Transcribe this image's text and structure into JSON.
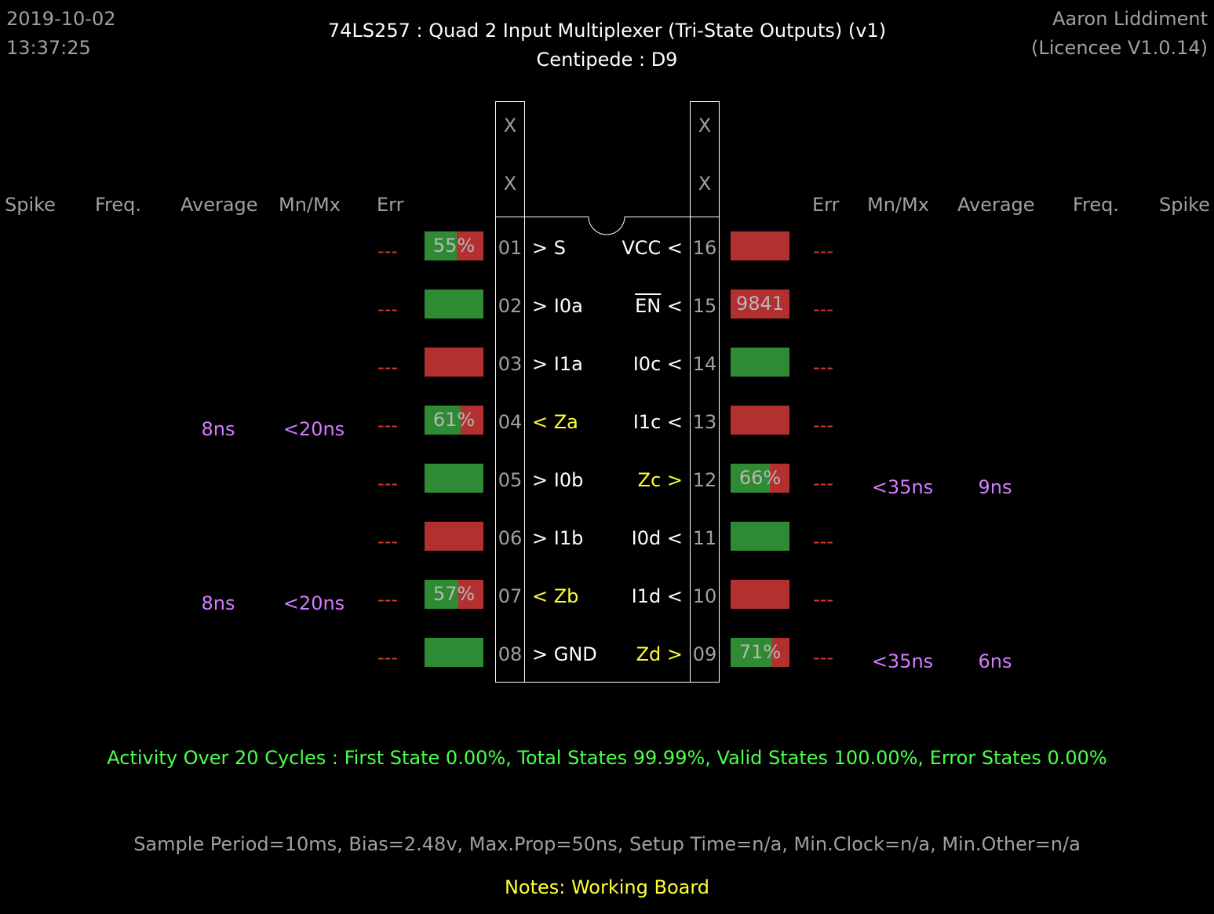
{
  "header": {
    "date": "2019-10-02",
    "time": "13:37:25",
    "title": "74LS257  :  Quad 2 Input Multiplexer (Tri-State Outputs) (v1)",
    "subtitle": "Centipede : D9",
    "author": "Aaron Liddiment",
    "licence": "(Licencee V1.0.14)"
  },
  "columns": {
    "left": [
      "Spike",
      "Freq.",
      "Average",
      "Mn/Mx",
      "Err"
    ],
    "right": [
      "Err",
      "Mn/Mx",
      "Average",
      "Freq.",
      "Spike"
    ]
  },
  "chip": {
    "top_left": [
      "X",
      "X"
    ],
    "top_right": [
      "X",
      "X"
    ]
  },
  "left_pins": [
    {
      "num": "01",
      "label": "> S",
      "err": "---",
      "average": "",
      "mnmx": "",
      "bar": {
        "state": "mixed",
        "green_pct": 55,
        "label": "55%"
      },
      "label_color": "#ffffff"
    },
    {
      "num": "02",
      "label": "> I0a",
      "err": "---",
      "average": "",
      "mnmx": "",
      "bar": {
        "state": "high",
        "green_pct": 100,
        "label": ""
      },
      "label_color": "#ffffff"
    },
    {
      "num": "03",
      "label": "> I1a",
      "err": "---",
      "average": "",
      "mnmx": "",
      "bar": {
        "state": "low",
        "green_pct": 0,
        "label": ""
      },
      "label_color": "#ffffff"
    },
    {
      "num": "04",
      "label": "< Za",
      "err": "---",
      "average": "8ns",
      "mnmx": "<20ns",
      "bar": {
        "state": "mixed",
        "green_pct": 61,
        "label": "61%"
      },
      "label_color": "#ffff33"
    },
    {
      "num": "05",
      "label": "> I0b",
      "err": "---",
      "average": "",
      "mnmx": "",
      "bar": {
        "state": "high",
        "green_pct": 100,
        "label": ""
      },
      "label_color": "#ffffff"
    },
    {
      "num": "06",
      "label": "> I1b",
      "err": "---",
      "average": "",
      "mnmx": "",
      "bar": {
        "state": "low",
        "green_pct": 0,
        "label": ""
      },
      "label_color": "#ffffff"
    },
    {
      "num": "07",
      "label": "< Zb",
      "err": "---",
      "average": "8ns",
      "mnmx": "<20ns",
      "bar": {
        "state": "mixed",
        "green_pct": 57,
        "label": "57%"
      },
      "label_color": "#ffff33"
    },
    {
      "num": "08",
      "label": "> GND",
      "err": "---",
      "average": "",
      "mnmx": "",
      "bar": {
        "state": "high",
        "green_pct": 100,
        "label": ""
      },
      "label_color": "#ffffff"
    }
  ],
  "right_pins": [
    {
      "num": "16",
      "label": "VCC <",
      "overline": false,
      "err": "---",
      "average": "",
      "mnmx": "",
      "bar": {
        "state": "low",
        "green_pct": 0,
        "label": ""
      },
      "label_color": "#ffffff"
    },
    {
      "num": "15",
      "label": "EN",
      "suffix": " <",
      "overline": true,
      "err": "---",
      "average": "",
      "mnmx": "",
      "bar": {
        "state": "low",
        "green_pct": 0,
        "label": "9841"
      },
      "label_color": "#ffffff"
    },
    {
      "num": "14",
      "label": "I0c <",
      "overline": false,
      "err": "---",
      "average": "",
      "mnmx": "",
      "bar": {
        "state": "high",
        "green_pct": 100,
        "label": ""
      },
      "label_color": "#ffffff"
    },
    {
      "num": "13",
      "label": "I1c <",
      "overline": false,
      "err": "---",
      "average": "",
      "mnmx": "",
      "bar": {
        "state": "low",
        "green_pct": 0,
        "label": ""
      },
      "label_color": "#ffffff"
    },
    {
      "num": "12",
      "label": "Zc >",
      "overline": false,
      "err": "---",
      "average": "9ns",
      "mnmx": "<35ns",
      "bar": {
        "state": "mixed",
        "green_pct": 66,
        "label": "66%"
      },
      "label_color": "#ffff33"
    },
    {
      "num": "11",
      "label": "I0d <",
      "overline": false,
      "err": "---",
      "average": "",
      "mnmx": "",
      "bar": {
        "state": "high",
        "green_pct": 100,
        "label": ""
      },
      "label_color": "#ffffff"
    },
    {
      "num": "10",
      "label": "I1d <",
      "overline": false,
      "err": "---",
      "average": "",
      "mnmx": "",
      "bar": {
        "state": "low",
        "green_pct": 0,
        "label": ""
      },
      "label_color": "#ffffff"
    },
    {
      "num": "09",
      "label": "Zd >",
      "overline": false,
      "err": "---",
      "average": "6ns",
      "mnmx": "<35ns",
      "bar": {
        "state": "mixed",
        "green_pct": 71,
        "label": "71%"
      },
      "label_color": "#ffff33"
    }
  ],
  "footer": {
    "activity": "Activity Over 20 Cycles  :  First State 0.00%,  Total States 99.99%,  Valid States 100.00%,  Error States 0.00%",
    "params": "Sample Period=10ms,  Bias=2.48v,  Max.Prop=50ns,  Setup Time=n/a,  Min.Clock=n/a,  Min.Other=n/a",
    "notes": "Notes:  Working Board"
  },
  "colors": {
    "background": "#000000",
    "high": "#2f8a34",
    "low": "#b23030",
    "err": "#d83a2e",
    "timing": "#d27cff",
    "output": "#ffff33",
    "activity": "#4cff4c",
    "muted": "#a0a0a0"
  }
}
